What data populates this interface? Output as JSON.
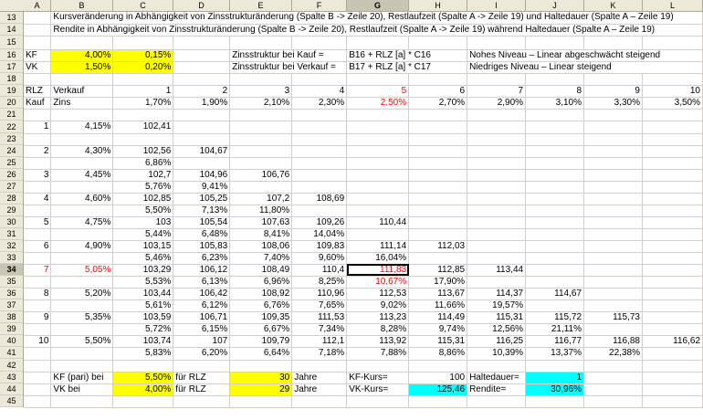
{
  "columns": [
    "A",
    "B",
    "C",
    "D",
    "E",
    "F",
    "G",
    "H",
    "I",
    "J",
    "K",
    "L"
  ],
  "row_numbers": [
    "13",
    "14",
    "15",
    "16",
    "17",
    "18",
    "19",
    "20",
    "21",
    "22",
    "23",
    "24",
    "25",
    "26",
    "27",
    "28",
    "29",
    "30",
    "31",
    "32",
    "33",
    "34",
    "35",
    "36",
    "37",
    "38",
    "39",
    "40",
    "41",
    "42",
    "43",
    "44",
    "45"
  ],
  "rows": {
    "r13": {
      "b": "Kursveränderung in Abhängigkeit von Zinsstrukturänderung (Spalte B -> Zeile 20), Restlaufzeit (Spalte A -> Zeile 19)  und Haltedauer (Spalte A – Zeile 19)"
    },
    "r14": {
      "b": "Rendite in Abhängigkeit von Zinsstrukturänderung (Spalte B -> Zeile 20), Restlaufzeit (Spalte A -> Zeile 19)  während Haltedauer (Spalte A – Zeile 19)"
    },
    "r16": {
      "a": "KF",
      "b": "4,00%",
      "c": "0,15%",
      "e": "Zinsstruktur bei Kauf =",
      "g": "B16 + RLZ [a] * C16",
      "i": "Nohes Niveau – Linear abgeschwächt steigend"
    },
    "r17": {
      "a": "VK",
      "b": "1,50%",
      "c": "0,20%",
      "e": "Zinsstruktur bei Verkauf =",
      "g": "B17 + RLZ [a] * C17",
      "i": "Niedriges Niveau – Linear steigend"
    },
    "r19": {
      "a": "RLZ",
      "b": "Verkauf",
      "c": "1",
      "d": "2",
      "e": "3",
      "f": "4",
      "g": "5",
      "h": "6",
      "i": "7",
      "j": "8",
      "k": "9",
      "l": "10"
    },
    "r20": {
      "a": "Kauf",
      "b": "Zins",
      "c": "1,70%",
      "d": "1,90%",
      "e": "2,10%",
      "f": "2,30%",
      "g": "2,50%",
      "h": "2,70%",
      "i": "2,90%",
      "j": "3,10%",
      "k": "3,30%",
      "l": "3,50%"
    },
    "r22": {
      "a": "1",
      "b": "4,15%",
      "c": "102,41"
    },
    "r24": {
      "a": "2",
      "b": "4,30%",
      "c": "102,56",
      "d": "104,67"
    },
    "r25": {
      "c": "6,86%"
    },
    "r26": {
      "a": "3",
      "b": "4,45%",
      "c": "102,7",
      "d": "104,96",
      "e": "106,76"
    },
    "r27": {
      "c": "5,76%",
      "d": "9,41%"
    },
    "r28": {
      "a": "4",
      "b": "4,60%",
      "c": "102,85",
      "d": "105,25",
      "e": "107,2",
      "f": "108,69"
    },
    "r29": {
      "c": "5,50%",
      "d": "7,13%",
      "e": "11,80%"
    },
    "r30": {
      "a": "5",
      "b": "4,75%",
      "c": "103",
      "d": "105,54",
      "e": "107,63",
      "f": "109,26",
      "g": "110,44"
    },
    "r31": {
      "c": "5,44%",
      "d": "6,48%",
      "e": "8,41%",
      "f": "14,04%"
    },
    "r32": {
      "a": "6",
      "b": "4,90%",
      "c": "103,15",
      "d": "105,83",
      "e": "108,06",
      "f": "109,83",
      "g": "111,14",
      "h": "112,03"
    },
    "r33": {
      "c": "5,46%",
      "d": "6,23%",
      "e": "7,40%",
      "f": "9,60%",
      "g": "16,04%"
    },
    "r34": {
      "a": "7",
      "b": "5,05%",
      "c": "103,29",
      "d": "106,12",
      "e": "108,49",
      "f": "110,4",
      "g": "111,83",
      "h": "112,85",
      "i": "113,44"
    },
    "r35": {
      "c": "5,53%",
      "d": "6,13%",
      "e": "6,96%",
      "f": "8,25%",
      "g": "10,67%",
      "h": "17,90%"
    },
    "r36": {
      "a": "8",
      "b": "5,20%",
      "c": "103,44",
      "d": "106,42",
      "e": "108,92",
      "f": "110,96",
      "g": "112,53",
      "h": "113,67",
      "i": "114,37",
      "j": "114,67"
    },
    "r37": {
      "c": "5,61%",
      "d": "6,12%",
      "e": "6,76%",
      "f": "7,65%",
      "g": "9,02%",
      "h": "11,66%",
      "i": "19,57%"
    },
    "r38": {
      "a": "9",
      "b": "5,35%",
      "c": "103,59",
      "d": "106,71",
      "e": "109,35",
      "f": "111,53",
      "g": "113,23",
      "h": "114,49",
      "i": "115,31",
      "j": "115,72",
      "k": "115,73"
    },
    "r39": {
      "c": "5,72%",
      "d": "6,15%",
      "e": "6,67%",
      "f": "7,34%",
      "g": "8,28%",
      "h": "9,74%",
      "i": "12,56%",
      "j": "21,11%"
    },
    "r40": {
      "a": "10",
      "b": "5,50%",
      "c": "103,74",
      "d": "107",
      "e": "109,79",
      "f": "112,1",
      "g": "113,92",
      "h": "115,31",
      "i": "116,25",
      "j": "116,77",
      "k": "116,88",
      "l": "116,62"
    },
    "r41": {
      "c": "5,83%",
      "d": "6,20%",
      "e": "6,64%",
      "f": "7,18%",
      "g": "7,88%",
      "h": "8,86%",
      "i": "10,39%",
      "j": "13,37%",
      "k": "22,38%"
    },
    "r43": {
      "b": "KF (pari) bei",
      "c": "5,50%",
      "d": "für RLZ",
      "e": "30",
      "f": "Jahre",
      "g": "KF-Kurs=",
      "h": "100",
      "i": "Haltedauer=",
      "j": "1"
    },
    "r44": {
      "b": "VK bei",
      "c": "4,00%",
      "d": "für RLZ",
      "e": "29",
      "f": "Jahre",
      "g": "VK-Kurs=",
      "h": "125,46",
      "i": "Rendite=",
      "j": "30,96%"
    }
  },
  "colors": {
    "highlight_yellow": "#ffff00",
    "highlight_cyan": "#00ffff",
    "red_text": "#ff0000",
    "header_gray": "#ece9d8"
  },
  "selection": {
    "cell": "G34",
    "column": "G",
    "row": "34"
  }
}
